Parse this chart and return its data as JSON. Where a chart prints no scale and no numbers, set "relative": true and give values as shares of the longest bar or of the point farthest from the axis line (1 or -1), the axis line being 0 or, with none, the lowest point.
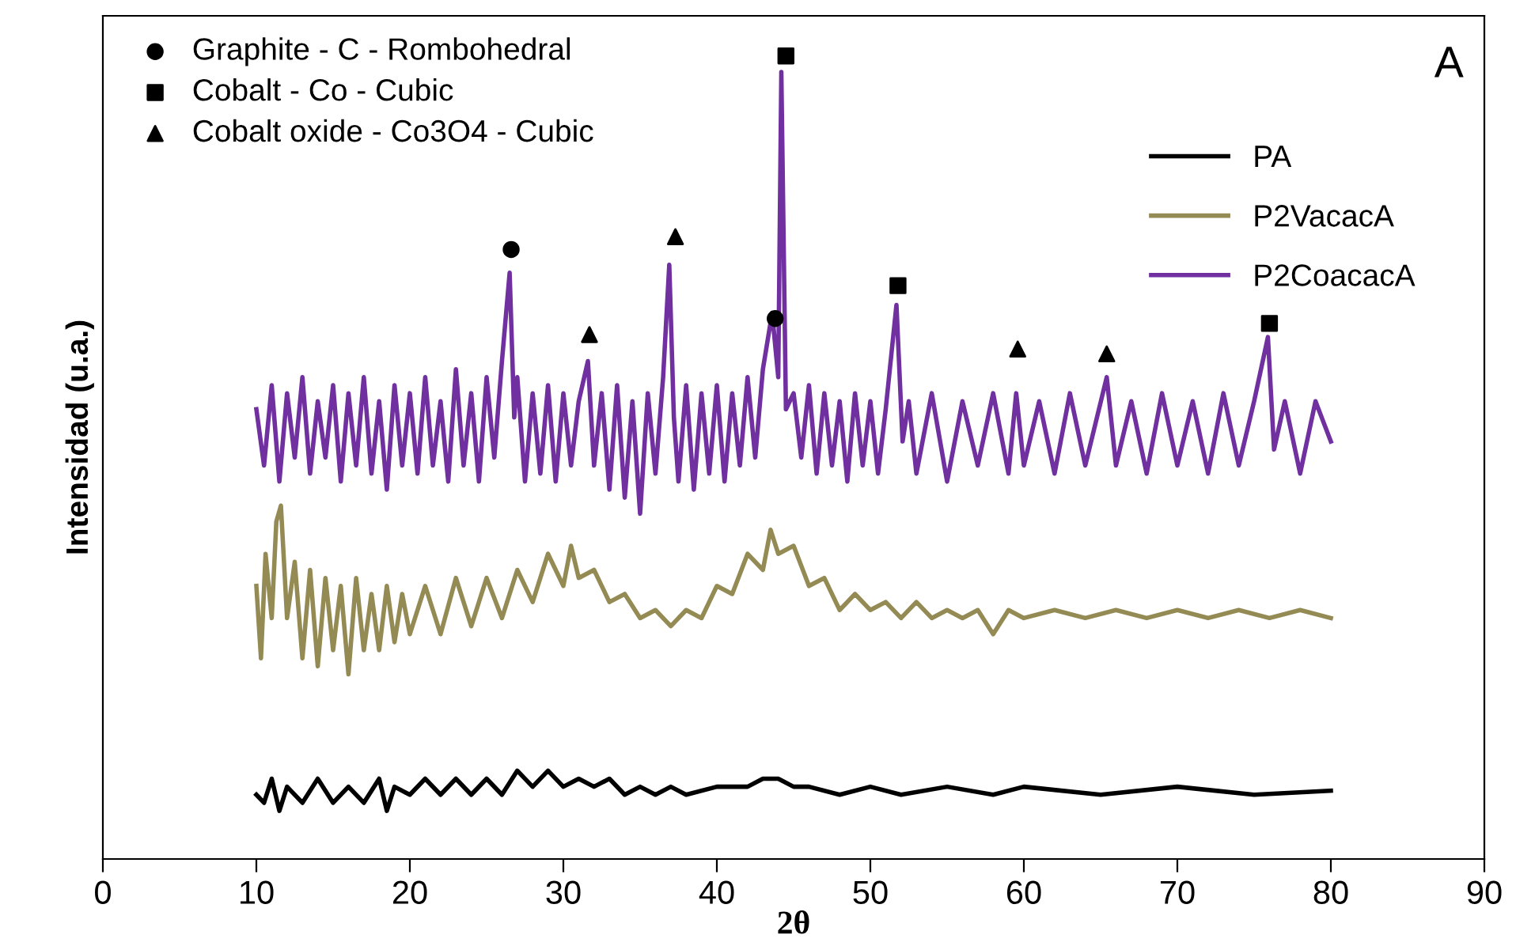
{
  "chart_data": {
    "type": "line",
    "relative": true,
    "xlabel": "2θ",
    "ylabel": "Intensidad (u.a.)",
    "xlim": [
      0,
      90
    ],
    "xticks": [
      0,
      10,
      20,
      30,
      40,
      50,
      60,
      70,
      80,
      90
    ],
    "grid": false,
    "legend": "top right",
    "annotations": [
      "A"
    ],
    "series": [
      {
        "name": "PA",
        "color": "#000000",
        "x": [
          10,
          10.5,
          11,
          11.5,
          12,
          13,
          14,
          15,
          16,
          17,
          18,
          18.5,
          19,
          20,
          21,
          22,
          23,
          24,
          25,
          26,
          27,
          28,
          29,
          30,
          31,
          32,
          33,
          34,
          35,
          36,
          37,
          38,
          40,
          42,
          43,
          44,
          45,
          46,
          48,
          50,
          52,
          55,
          58,
          60,
          65,
          70,
          75,
          80
        ],
        "values": [
          0.08,
          0.07,
          0.1,
          0.06,
          0.09,
          0.07,
          0.1,
          0.07,
          0.09,
          0.07,
          0.1,
          0.06,
          0.09,
          0.08,
          0.1,
          0.08,
          0.1,
          0.08,
          0.1,
          0.08,
          0.11,
          0.09,
          0.11,
          0.09,
          0.1,
          0.09,
          0.1,
          0.08,
          0.09,
          0.08,
          0.09,
          0.08,
          0.09,
          0.09,
          0.1,
          0.1,
          0.09,
          0.09,
          0.08,
          0.09,
          0.08,
          0.09,
          0.08,
          0.09,
          0.08,
          0.09,
          0.08,
          0.085
        ]
      },
      {
        "name": "P2VacacA",
        "color": "#948a54",
        "x": [
          10,
          10.3,
          10.6,
          11,
          11.3,
          11.6,
          12,
          12.5,
          13,
          13.5,
          14,
          14.5,
          15,
          15.5,
          16,
          16.5,
          17,
          17.5,
          18,
          18.5,
          19,
          19.5,
          20,
          21,
          22,
          23,
          24,
          25,
          26,
          27,
          28,
          29,
          30,
          30.5,
          31,
          32,
          33,
          34,
          35,
          36,
          37,
          38,
          39,
          40,
          41,
          42,
          43,
          43.5,
          44,
          45,
          46,
          47,
          48,
          49,
          50,
          51,
          52,
          53,
          54,
          55,
          56,
          57,
          58,
          59,
          60,
          62,
          64,
          66,
          68,
          70,
          72,
          74,
          76,
          78,
          80
        ],
        "values": [
          0.34,
          0.25,
          0.38,
          0.3,
          0.42,
          0.44,
          0.3,
          0.37,
          0.25,
          0.36,
          0.24,
          0.35,
          0.26,
          0.34,
          0.23,
          0.35,
          0.26,
          0.33,
          0.26,
          0.34,
          0.27,
          0.33,
          0.28,
          0.34,
          0.28,
          0.35,
          0.29,
          0.35,
          0.3,
          0.36,
          0.32,
          0.38,
          0.34,
          0.39,
          0.35,
          0.36,
          0.32,
          0.33,
          0.3,
          0.31,
          0.29,
          0.31,
          0.3,
          0.34,
          0.33,
          0.38,
          0.36,
          0.41,
          0.38,
          0.39,
          0.34,
          0.35,
          0.31,
          0.33,
          0.31,
          0.32,
          0.3,
          0.32,
          0.3,
          0.31,
          0.3,
          0.31,
          0.28,
          0.31,
          0.3,
          0.31,
          0.3,
          0.31,
          0.3,
          0.31,
          0.3,
          0.31,
          0.3,
          0.31,
          0.3
        ]
      },
      {
        "name": "P2CoacacA",
        "color": "#7030a0",
        "x": [
          10,
          10.5,
          11,
          11.5,
          12,
          12.5,
          13,
          13.5,
          14,
          14.5,
          15,
          15.5,
          16,
          16.5,
          17,
          17.5,
          18,
          18.5,
          19,
          19.5,
          20,
          20.5,
          21,
          21.5,
          22,
          22.5,
          23,
          23.5,
          24,
          24.5,
          25,
          25.5,
          26,
          26.5,
          26.8,
          27,
          27.5,
          28,
          28.5,
          29,
          29.5,
          30,
          30.5,
          31,
          31.6,
          32,
          32.5,
          33,
          33.5,
          34,
          34.5,
          35,
          35.5,
          36,
          36.5,
          36.9,
          37.2,
          37.5,
          38,
          38.5,
          39,
          39.5,
          40,
          40.5,
          41,
          41.5,
          42,
          42.5,
          43,
          43.6,
          44,
          44.2,
          44.5,
          45,
          45.5,
          46,
          46.5,
          47,
          47.5,
          48,
          48.5,
          49,
          49.5,
          50,
          50.5,
          51,
          51.7,
          52.1,
          52.5,
          53,
          54,
          55,
          56,
          57,
          58,
          59,
          59.5,
          60,
          61,
          62,
          63,
          64,
          65.4,
          66,
          67,
          68,
          69,
          70,
          71,
          72,
          73,
          74,
          75,
          75.9,
          76.3,
          77,
          78,
          79,
          80
        ],
        "values": [
          0.56,
          0.49,
          0.59,
          0.47,
          0.58,
          0.5,
          0.6,
          0.48,
          0.57,
          0.5,
          0.59,
          0.47,
          0.58,
          0.49,
          0.6,
          0.48,
          0.57,
          0.46,
          0.59,
          0.49,
          0.58,
          0.48,
          0.6,
          0.49,
          0.57,
          0.47,
          0.61,
          0.49,
          0.58,
          0.47,
          0.6,
          0.5,
          0.62,
          0.73,
          0.55,
          0.6,
          0.47,
          0.58,
          0.48,
          0.59,
          0.47,
          0.58,
          0.49,
          0.57,
          0.62,
          0.49,
          0.58,
          0.46,
          0.59,
          0.45,
          0.57,
          0.43,
          0.58,
          0.48,
          0.6,
          0.74,
          0.55,
          0.47,
          0.59,
          0.46,
          0.58,
          0.48,
          0.59,
          0.47,
          0.58,
          0.49,
          0.6,
          0.5,
          0.61,
          0.68,
          0.6,
          0.98,
          0.56,
          0.58,
          0.5,
          0.59,
          0.48,
          0.58,
          0.49,
          0.57,
          0.47,
          0.58,
          0.49,
          0.57,
          0.48,
          0.56,
          0.69,
          0.52,
          0.57,
          0.48,
          0.58,
          0.47,
          0.57,
          0.49,
          0.58,
          0.48,
          0.58,
          0.49,
          0.57,
          0.48,
          0.58,
          0.49,
          0.6,
          0.49,
          0.57,
          0.48,
          0.58,
          0.49,
          0.57,
          0.48,
          0.58,
          0.49,
          0.57,
          0.65,
          0.51,
          0.57,
          0.48,
          0.57,
          0.52
        ]
      },
      {
        "name": "Graphite - C - Rombohedral",
        "type": "scatter",
        "marker": "circle",
        "color": "#000000",
        "x": [
          26.6,
          43.8
        ],
        "values": [
          0.759,
          0.673
        ]
      },
      {
        "name": "Cobalt - Co - Cubic",
        "type": "scatter",
        "marker": "square",
        "color": "#000000",
        "x": [
          44.5,
          51.8,
          76
        ],
        "values": [
          1.0,
          0.714,
          0.667
        ]
      },
      {
        "name": "Cobalt oxide - Co3O4 - Cubic",
        "type": "scatter",
        "marker": "triangle",
        "color": "#000000",
        "x": [
          31.7,
          37.3,
          59.6,
          65.4
        ],
        "values": [
          0.653,
          0.775,
          0.635,
          0.629
        ]
      }
    ]
  }
}
